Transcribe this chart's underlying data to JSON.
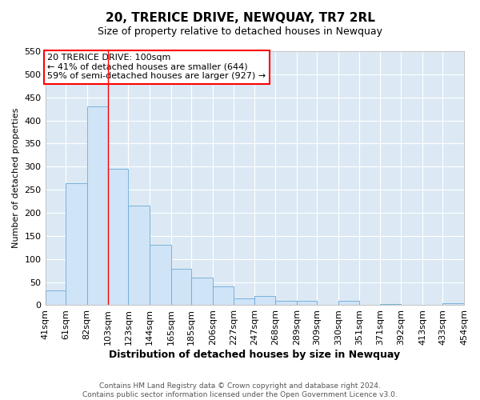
{
  "title": "20, TRERICE DRIVE, NEWQUAY, TR7 2RL",
  "subtitle": "Size of property relative to detached houses in Newquay",
  "xlabel": "Distribution of detached houses by size in Newquay",
  "ylabel": "Number of detached properties",
  "footer_line1": "Contains HM Land Registry data © Crown copyright and database right 2024.",
  "footer_line2": "Contains public sector information licensed under the Open Government Licence v3.0.",
  "bin_labels": [
    "41sqm",
    "61sqm",
    "82sqm",
    "103sqm",
    "123sqm",
    "144sqm",
    "165sqm",
    "185sqm",
    "206sqm",
    "227sqm",
    "247sqm",
    "268sqm",
    "289sqm",
    "309sqm",
    "330sqm",
    "351sqm",
    "371sqm",
    "392sqm",
    "413sqm",
    "433sqm",
    "454sqm"
  ],
  "bar_heights": [
    32,
    265,
    430,
    295,
    215,
    130,
    78,
    60,
    40,
    15,
    20,
    9,
    10,
    0,
    10,
    0,
    3,
    0,
    0,
    4,
    0
  ],
  "bin_edges": [
    41,
    61,
    82,
    103,
    123,
    144,
    165,
    185,
    206,
    227,
    247,
    268,
    289,
    309,
    330,
    351,
    371,
    392,
    413,
    433,
    454
  ],
  "bar_color": "#d0e4f7",
  "bar_edge_color": "#6aaad4",
  "ylim": [
    0,
    550
  ],
  "yticks": [
    0,
    50,
    100,
    150,
    200,
    250,
    300,
    350,
    400,
    450,
    500,
    550
  ],
  "red_line_x": 103,
  "annotation_title": "20 TRERICE DRIVE: 100sqm",
  "annotation_line1": "← 41% of detached houses are smaller (644)",
  "annotation_line2": "59% of semi-detached houses are larger (927) →",
  "fig_bg_color": "#ffffff",
  "plot_bg_color": "#dce9f5",
  "grid_color": "#ffffff",
  "title_fontsize": 11,
  "subtitle_fontsize": 9,
  "xlabel_fontsize": 9,
  "ylabel_fontsize": 8,
  "tick_fontsize": 8,
  "annot_fontsize": 8,
  "footer_fontsize": 6.5
}
